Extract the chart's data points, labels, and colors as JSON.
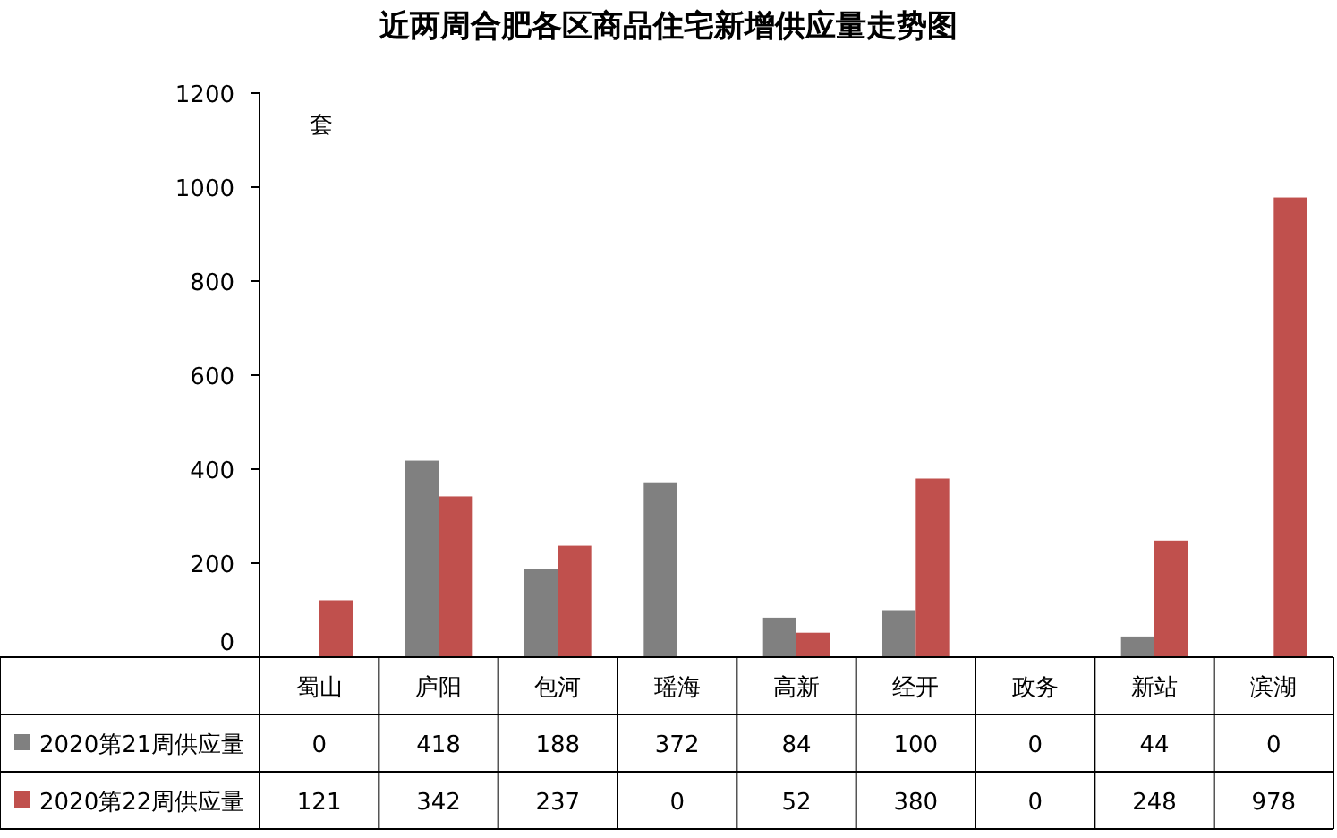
{
  "chart_data": {
    "type": "bar",
    "title": "近两周合肥各区商品住宅新增供应量走势图",
    "ylabel": "套",
    "categories": [
      "蜀山",
      "庐阳",
      "包河",
      "瑶海",
      "高新",
      "经开",
      "政务",
      "新站",
      "滨湖"
    ],
    "series": [
      {
        "name": "2020第21周供应量",
        "color": "#808080",
        "values": [
          0,
          418,
          188,
          372,
          84,
          100,
          0,
          44,
          0
        ]
      },
      {
        "name": "2020第22周供应量",
        "color": "#c0504d",
        "values": [
          121,
          342,
          237,
          0,
          52,
          380,
          0,
          248,
          978
        ]
      }
    ],
    "ylim": [
      0,
      1200
    ],
    "yticks": [
      0,
      200,
      400,
      600,
      800,
      1000,
      1200
    ],
    "data_labels": true,
    "legend": "bottom"
  }
}
